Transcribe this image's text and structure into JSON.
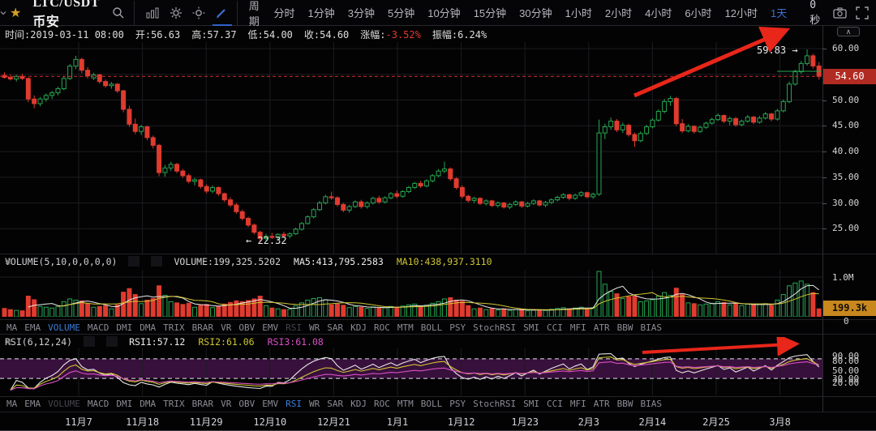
{
  "toolbar": {
    "symbol": "LTC/USDT 币安",
    "period_label": "周期",
    "timeframes": [
      "分时",
      "1分钟",
      "3分钟",
      "5分钟",
      "10分钟",
      "15分钟",
      "30分钟",
      "1小时",
      "2小时",
      "4小时",
      "6小时",
      "12小时",
      "1天"
    ],
    "active_timeframe": "1天",
    "countdown": "0秒",
    "icons": [
      "star",
      "search",
      "kline",
      "settings",
      "brightness",
      "draw",
      "camera",
      "fullscreen"
    ]
  },
  "ohlc": {
    "fields": [
      [
        "时间:",
        "2019-03-11 08:00",
        "#dedede"
      ],
      [
        "开:",
        "56.63",
        "#dedede"
      ],
      [
        "高:",
        "57.37",
        "#dedede"
      ],
      [
        "低:",
        "54.00",
        "#dedede"
      ],
      [
        "收:",
        "54.60",
        "#dedede"
      ],
      [
        "涨幅:",
        "-3.52%",
        "#e23b2e"
      ],
      [
        "振幅:",
        "6.24%",
        "#dedede"
      ]
    ]
  },
  "price_axis": {
    "ticks": [
      "60.00",
      "50.00",
      "45.00",
      "40.00",
      "35.00",
      "30.00",
      "25.00"
    ],
    "current": "54.60"
  },
  "volume_panel": {
    "title": "VOLUME(5,10,0,0,0,0)",
    "readouts": [
      [
        "VOLUME:199,325.5202",
        "#d6d6d6"
      ],
      [
        "MA5:413,795.2583",
        "#ececec"
      ],
      [
        "MA10:438,937.3110",
        "#cfc531"
      ]
    ],
    "axis_top": "1.0M",
    "axis_zero": "0",
    "current": "199.3k"
  },
  "rsi_panel": {
    "title": "RSI(6,12,24)",
    "readouts": [
      [
        "RSI1:57.12",
        "#ececec"
      ],
      [
        "RSI2:61.06",
        "#cfc531"
      ],
      [
        "RSI3:61.08",
        "#d94fc3"
      ]
    ],
    "axis": [
      "90.00",
      "80.00",
      "50.00",
      "30.00",
      "20.00"
    ]
  },
  "indicator_tabs": {
    "items": [
      "MA",
      "EMA",
      "VOLUME",
      "MACD",
      "DMI",
      "DMA",
      "TRIX",
      "BRAR",
      "VR",
      "OBV",
      "EMV",
      "RSI",
      "WR",
      "SAR",
      "KDJ",
      "ROC",
      "MTM",
      "BOLL",
      "PSY",
      "StochRSI",
      "SMI",
      "CCI",
      "MFI",
      "ATR",
      "BBW",
      "BIAS"
    ],
    "row1_active": "VOLUME",
    "row1_dimmed": "RSI",
    "row2_active": "RSI",
    "row2_dimmed": "VOLUME"
  },
  "date_axis": [
    "11月7",
    "11月18",
    "11月29",
    "12月10",
    "12月21",
    "1月1",
    "1月12",
    "1月23",
    "2月3",
    "2月14",
    "2月25",
    "3月8"
  ],
  "annotations": {
    "high": "59.83 →",
    "low": "← 22.32"
  },
  "colors": {
    "up": "#25a750",
    "down": "#e03b2f",
    "accent_blue": "#3b7bd5",
    "yellow": "#cfc531",
    "magenta": "#d94fc3",
    "white_line": "#e8e8e8",
    "price_line": "#d32f2f",
    "arrow": "#e8261a",
    "grid": "#1c1c21",
    "band_fill": "#38103c",
    "band_edge": "#babac2"
  },
  "chart_data": {
    "type": "candlestick",
    "symbol": "LTC/USDT",
    "interval": "1天",
    "ylim": [
      20,
      62
    ],
    "price_gridlines": [
      25,
      30,
      35,
      40,
      45,
      50,
      55,
      60
    ],
    "current_price": 54.6,
    "marked_high": 59.83,
    "marked_low": 22.32,
    "volume_axis_max_label": "1.0M",
    "candles": [
      [
        54.8,
        55.4,
        54.2,
        54.4,
        210
      ],
      [
        54.4,
        55.0,
        53.8,
        54.1,
        180
      ],
      [
        54.1,
        54.9,
        53.6,
        54.6,
        160
      ],
      [
        54.6,
        55.1,
        53.9,
        54.2,
        150
      ],
      [
        54.2,
        54.4,
        49.6,
        50.2,
        520
      ],
      [
        50.2,
        50.9,
        48.4,
        49.3,
        430
      ],
      [
        49.3,
        50.6,
        48.8,
        50.2,
        260
      ],
      [
        50.2,
        51.3,
        49.7,
        50.9,
        240
      ],
      [
        50.9,
        51.8,
        50.2,
        51.4,
        220
      ],
      [
        51.4,
        52.6,
        50.9,
        52.2,
        260
      ],
      [
        52.2,
        54.6,
        51.9,
        54.2,
        380
      ],
      [
        54.2,
        57.0,
        53.9,
        56.6,
        450
      ],
      [
        56.6,
        58.6,
        56.0,
        57.9,
        420
      ],
      [
        57.9,
        58.2,
        55.2,
        55.8,
        400
      ],
      [
        55.8,
        56.4,
        54.2,
        54.7,
        330
      ],
      [
        54.3,
        55.3,
        53.9,
        54.9,
        240
      ],
      [
        54.9,
        55.1,
        53.2,
        53.6,
        260
      ],
      [
        53.6,
        54.0,
        52.4,
        52.8,
        280
      ],
      [
        52.8,
        53.5,
        52.2,
        53.1,
        200
      ],
      [
        53.1,
        53.3,
        51.4,
        51.8,
        300
      ],
      [
        51.8,
        52.0,
        47.6,
        48.2,
        620
      ],
      [
        48.2,
        48.9,
        44.8,
        45.3,
        710
      ],
      [
        45.3,
        46.4,
        43.4,
        43.9,
        560
      ],
      [
        43.9,
        45.2,
        43.2,
        44.8,
        330
      ],
      [
        44.8,
        45.0,
        42.2,
        42.7,
        420
      ],
      [
        42.7,
        43.1,
        40.6,
        41.2,
        460
      ],
      [
        41.2,
        41.5,
        35.2,
        35.9,
        780
      ],
      [
        35.9,
        37.4,
        35.1,
        36.8,
        540
      ],
      [
        36.8,
        38.0,
        36.2,
        37.5,
        380
      ],
      [
        37.5,
        37.8,
        35.8,
        36.2,
        350
      ],
      [
        36.2,
        36.6,
        34.9,
        35.3,
        310
      ],
      [
        35.3,
        35.7,
        33.8,
        34.2,
        340
      ],
      [
        34.2,
        34.9,
        33.4,
        34.5,
        240
      ],
      [
        34.5,
        34.7,
        32.8,
        33.2,
        290
      ],
      [
        33.2,
        33.6,
        31.9,
        32.3,
        310
      ],
      [
        32.3,
        33.4,
        31.9,
        33.0,
        230
      ],
      [
        33.0,
        33.2,
        31.4,
        31.8,
        270
      ],
      [
        31.8,
        32.0,
        30.2,
        30.6,
        320
      ],
      [
        30.6,
        31.1,
        29.2,
        29.6,
        360
      ],
      [
        29.6,
        30.0,
        27.9,
        28.3,
        400
      ],
      [
        28.3,
        28.7,
        26.6,
        27.0,
        380
      ],
      [
        27.0,
        27.3,
        25.3,
        25.7,
        410
      ],
      [
        25.7,
        26.0,
        23.9,
        24.3,
        450
      ],
      [
        24.3,
        24.6,
        22.32,
        23.1,
        520
      ],
      [
        23.1,
        24.0,
        22.7,
        23.5,
        280
      ],
      [
        23.5,
        24.2,
        23.0,
        23.3,
        220
      ],
      [
        23.3,
        24.1,
        22.8,
        23.9,
        200
      ],
      [
        23.9,
        24.4,
        23.2,
        23.6,
        180
      ],
      [
        23.6,
        24.3,
        23.1,
        24.0,
        190
      ],
      [
        24.0,
        25.2,
        23.8,
        24.9,
        280
      ],
      [
        24.9,
        26.3,
        24.6,
        26.0,
        350
      ],
      [
        26.0,
        27.6,
        25.8,
        27.3,
        420
      ],
      [
        27.3,
        29.0,
        27.0,
        28.7,
        460
      ],
      [
        28.7,
        30.4,
        28.4,
        30.0,
        480
      ],
      [
        30.0,
        31.6,
        29.7,
        31.2,
        430
      ],
      [
        31.2,
        32.2,
        30.6,
        31.0,
        300
      ],
      [
        31.0,
        31.3,
        29.3,
        29.7,
        320
      ],
      [
        29.7,
        30.0,
        28.2,
        28.6,
        290
      ],
      [
        28.6,
        29.6,
        28.1,
        29.3,
        230
      ],
      [
        29.3,
        30.5,
        29.0,
        30.2,
        260
      ],
      [
        30.2,
        30.6,
        28.9,
        29.3,
        240
      ],
      [
        29.3,
        30.3,
        28.9,
        30.0,
        210
      ],
      [
        30.0,
        31.2,
        29.7,
        30.9,
        250
      ],
      [
        30.9,
        31.4,
        29.8,
        30.2,
        220
      ],
      [
        30.2,
        31.3,
        29.9,
        31.0,
        230
      ],
      [
        31.0,
        32.1,
        30.7,
        31.8,
        260
      ],
      [
        31.8,
        32.4,
        30.9,
        31.3,
        240
      ],
      [
        31.3,
        32.5,
        31.0,
        32.2,
        270
      ],
      [
        32.2,
        33.3,
        31.9,
        33.0,
        300
      ],
      [
        33.0,
        34.1,
        32.7,
        33.8,
        320
      ],
      [
        33.8,
        34.3,
        32.9,
        33.3,
        250
      ],
      [
        33.3,
        34.6,
        33.0,
        34.3,
        290
      ],
      [
        34.3,
        35.6,
        34.0,
        35.3,
        340
      ],
      [
        35.3,
        36.6,
        35.0,
        36.2,
        380
      ],
      [
        36.2,
        38.0,
        35.8,
        36.6,
        450
      ],
      [
        36.6,
        36.9,
        34.3,
        34.7,
        480
      ],
      [
        34.7,
        35.0,
        32.6,
        33.0,
        420
      ],
      [
        33.0,
        33.4,
        30.9,
        31.3,
        390
      ],
      [
        31.3,
        31.6,
        30.1,
        30.5,
        280
      ],
      [
        30.5,
        31.2,
        30.0,
        30.9,
        200
      ],
      [
        30.9,
        31.1,
        29.6,
        29.9,
        220
      ],
      [
        29.9,
        30.7,
        29.5,
        30.4,
        180
      ],
      [
        30.4,
        30.6,
        29.2,
        29.5,
        210
      ],
      [
        29.5,
        30.3,
        29.1,
        30.0,
        170
      ],
      [
        30.0,
        30.2,
        28.9,
        29.2,
        200
      ],
      [
        29.2,
        30.0,
        28.8,
        29.7,
        160
      ],
      [
        29.7,
        30.5,
        29.4,
        30.2,
        180
      ],
      [
        30.2,
        30.4,
        29.0,
        29.4,
        190
      ],
      [
        29.4,
        30.2,
        29.1,
        29.9,
        150
      ],
      [
        29.9,
        30.7,
        29.6,
        30.4,
        170
      ],
      [
        30.4,
        30.6,
        29.3,
        29.6,
        180
      ],
      [
        29.6,
        30.4,
        29.2,
        30.1,
        160
      ],
      [
        30.1,
        30.9,
        29.8,
        30.6,
        190
      ],
      [
        30.6,
        31.4,
        30.3,
        31.1,
        210
      ],
      [
        31.1,
        31.9,
        30.8,
        31.6,
        230
      ],
      [
        31.6,
        31.8,
        30.5,
        30.9,
        200
      ],
      [
        30.9,
        31.8,
        30.6,
        31.5,
        220
      ],
      [
        31.5,
        32.3,
        31.2,
        32.0,
        240
      ],
      [
        32.0,
        32.2,
        30.9,
        31.2,
        210
      ],
      [
        31.2,
        32.0,
        30.8,
        31.7,
        230
      ],
      [
        31.7,
        46.2,
        31.4,
        43.6,
        1350
      ],
      [
        43.6,
        45.4,
        42.4,
        44.8,
        820
      ],
      [
        44.8,
        46.6,
        44.2,
        45.9,
        640
      ],
      [
        45.9,
        46.3,
        43.8,
        44.2,
        580
      ],
      [
        44.2,
        45.6,
        43.6,
        45.1,
        460
      ],
      [
        45.1,
        45.4,
        42.9,
        43.3,
        500
      ],
      [
        43.3,
        43.7,
        40.9,
        42.1,
        520
      ],
      [
        42.1,
        43.9,
        41.8,
        43.5,
        380
      ],
      [
        43.5,
        45.2,
        43.2,
        44.8,
        400
      ],
      [
        44.8,
        46.5,
        44.5,
        46.1,
        430
      ],
      [
        46.1,
        48.2,
        45.8,
        47.8,
        520
      ],
      [
        47.8,
        50.2,
        47.4,
        49.7,
        610
      ],
      [
        49.7,
        50.8,
        48.9,
        50.3,
        540
      ],
      [
        50.3,
        50.6,
        44.9,
        45.4,
        720
      ],
      [
        45.4,
        46.3,
        43.6,
        44.0,
        560
      ],
      [
        44.0,
        45.3,
        43.7,
        44.9,
        350
      ],
      [
        44.9,
        45.1,
        43.5,
        43.9,
        330
      ],
      [
        43.9,
        45.0,
        43.6,
        44.7,
        300
      ],
      [
        44.7,
        45.8,
        44.4,
        45.5,
        320
      ],
      [
        45.5,
        46.6,
        45.2,
        46.2,
        340
      ],
      [
        46.2,
        47.4,
        45.9,
        47.0,
        380
      ],
      [
        47.0,
        47.2,
        45.5,
        45.9,
        360
      ],
      [
        45.9,
        46.8,
        45.1,
        46.4,
        300
      ],
      [
        46.4,
        46.7,
        44.8,
        45.2,
        340
      ],
      [
        45.2,
        46.2,
        44.9,
        45.9,
        280
      ],
      [
        45.9,
        47.1,
        45.6,
        46.7,
        320
      ],
      [
        46.7,
        46.9,
        45.3,
        45.7,
        300
      ],
      [
        45.7,
        46.9,
        45.4,
        46.5,
        310
      ],
      [
        46.5,
        47.7,
        46.2,
        47.3,
        330
      ],
      [
        47.3,
        47.5,
        45.9,
        46.3,
        290
      ],
      [
        46.3,
        48.3,
        46.0,
        47.9,
        420
      ],
      [
        47.9,
        50.1,
        47.6,
        49.7,
        560
      ],
      [
        49.7,
        53.6,
        49.4,
        53.1,
        780
      ],
      [
        53.1,
        55.9,
        52.8,
        55.5,
        850
      ],
      [
        55.5,
        57.6,
        55.1,
        57.1,
        900
      ],
      [
        57.1,
        59.83,
        56.7,
        58.6,
        820
      ],
      [
        58.6,
        59.0,
        56.1,
        56.63,
        610
      ],
      [
        56.63,
        57.37,
        54.0,
        54.6,
        199
      ]
    ]
  }
}
